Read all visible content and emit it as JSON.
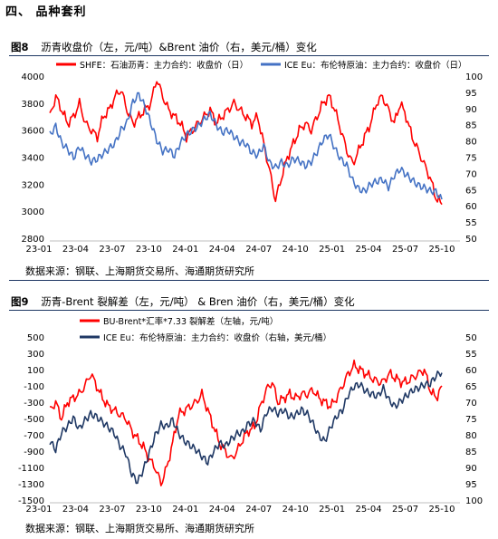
{
  "section": {
    "title": "四、 品种套利"
  },
  "figures": [
    {
      "number": "图8",
      "title": "沥青收盘价（左，元/吨）&Brent 油价（右，美元/桶）变化",
      "source": "数据来源：钢联、上海期货交易所、海通期货研究所"
    },
    {
      "number": "图9",
      "title": "沥青-Brent 裂解差（左，元/吨） & Bren 油价（右，美元/桶）变化",
      "source": "数据来源：钢联、上海期货交易所、海通期货研究所"
    }
  ],
  "colors": {
    "red": "#ff0000",
    "blue": "#4472c4",
    "blue_dark": "#1f3864",
    "rule": "#1f3864"
  },
  "chart_data": [
    {
      "type": "line",
      "title": "",
      "x_ticks": [
        "23-01",
        "23-04",
        "23-07",
        "23-10",
        "24-01",
        "24-04",
        "24-07",
        "24-10",
        "25-01",
        "25-04",
        "25-07",
        "25-10"
      ],
      "ylim_left": [
        2800,
        4000
      ],
      "yticks_left": [
        2800,
        3000,
        3200,
        3400,
        3600,
        3800,
        4000
      ],
      "ylim_right": [
        50,
        100
      ],
      "yticks_right": [
        50,
        55,
        60,
        65,
        70,
        75,
        80,
        85,
        90,
        95,
        100
      ],
      "right_axis_inverted": false,
      "grid": false,
      "legend_position": "top",
      "series": [
        {
          "name": "SHFE：石油沥青：主力合约：收盘价（日）",
          "axis": "left",
          "color": "#ff0000",
          "values": [
            3700,
            3850,
            3750,
            3650,
            3700,
            3800,
            3650,
            3600,
            3550,
            3700,
            3750,
            3850,
            3900,
            3750,
            3650,
            3700,
            3750,
            3800,
            3980,
            3850,
            3750,
            3700,
            3650,
            3550,
            3600,
            3650,
            3700,
            3750,
            3650,
            3700,
            3750,
            3800,
            3750,
            3700,
            3650,
            3700,
            3500,
            3300,
            3080,
            3250,
            3400,
            3500,
            3600,
            3650,
            3600,
            3700,
            3800,
            3850,
            3750,
            3600,
            3450,
            3350,
            3450,
            3550,
            3650,
            3800,
            3850,
            3750,
            3650,
            3800,
            3700,
            3550,
            3450,
            3350,
            3250,
            3100,
            3050
          ]
        },
        {
          "name": "ICE Eu：布伦特原油：主力合约：收盘价（日）",
          "axis": "right",
          "color": "#4472c4",
          "values": [
            82,
            85,
            80,
            78,
            75,
            78,
            75,
            73,
            74,
            76,
            78,
            80,
            84,
            86,
            92,
            94,
            90,
            85,
            80,
            77,
            78,
            76,
            80,
            82,
            83,
            84,
            86,
            88,
            85,
            83,
            84,
            82,
            80,
            79,
            76,
            75,
            78,
            73,
            72,
            74,
            73,
            75,
            74,
            72,
            73,
            76,
            80,
            82,
            78,
            75,
            73,
            68,
            65,
            64,
            66,
            67,
            68,
            66,
            70,
            72,
            70,
            68,
            66,
            65,
            64,
            64,
            62
          ]
        }
      ]
    },
    {
      "type": "line",
      "title": "",
      "x_ticks": [
        "23-01",
        "23-04",
        "23-07",
        "23-10",
        "24-01",
        "24-04",
        "24-07",
        "24-10",
        "25-01",
        "25-04",
        "25-07",
        "25-10"
      ],
      "ylim_left": [
        -1500,
        500
      ],
      "yticks_left": [
        -1500,
        -1300,
        -1100,
        -900,
        -700,
        -500,
        -300,
        -100,
        100,
        300,
        500
      ],
      "ylim_right": [
        100,
        50
      ],
      "yticks_right": [
        50,
        55,
        60,
        65,
        70,
        75,
        80,
        85,
        90,
        95,
        100
      ],
      "right_axis_inverted": true,
      "grid": false,
      "legend_position": "top",
      "series": [
        {
          "name": "BU-Brent*汇率*7.33 裂解差（左轴，元/吨）",
          "axis": "left",
          "color": "#ff0000",
          "values": [
            -400,
            -300,
            -500,
            -300,
            -250,
            -200,
            -100,
            50,
            -100,
            -250,
            -350,
            -400,
            -450,
            -500,
            -650,
            -750,
            -850,
            -1000,
            -1100,
            -1300,
            -1100,
            -800,
            -450,
            -400,
            -350,
            -300,
            -200,
            -400,
            -600,
            -800,
            -900,
            -1000,
            -900,
            -750,
            -650,
            -600,
            -350,
            -150,
            -50,
            -300,
            -250,
            -200,
            -250,
            -200,
            -200,
            -150,
            -250,
            -300,
            -350,
            -250,
            -100,
            50,
            150,
            100,
            50,
            0,
            -50,
            -50,
            50,
            0,
            -50,
            -50,
            0,
            50,
            100,
            -150,
            -250,
            -100
          ]
        },
        {
          "name": "ICE Eu：布伦特原油：主力合约：收盘价（右轴，美元/桶）",
          "axis": "right",
          "color": "#1f3864",
          "values": [
            82,
            85,
            80,
            78,
            75,
            78,
            75,
            73,
            74,
            76,
            78,
            80,
            84,
            86,
            92,
            94,
            90,
            85,
            80,
            77,
            78,
            76,
            80,
            82,
            83,
            84,
            86,
            88,
            85,
            83,
            84,
            82,
            80,
            79,
            76,
            75,
            78,
            73,
            72,
            74,
            73,
            75,
            74,
            72,
            73,
            76,
            80,
            82,
            78,
            75,
            73,
            68,
            65,
            64,
            66,
            67,
            68,
            66,
            70,
            72,
            70,
            68,
            66,
            65,
            64,
            64,
            62,
            61
          ]
        }
      ]
    }
  ]
}
